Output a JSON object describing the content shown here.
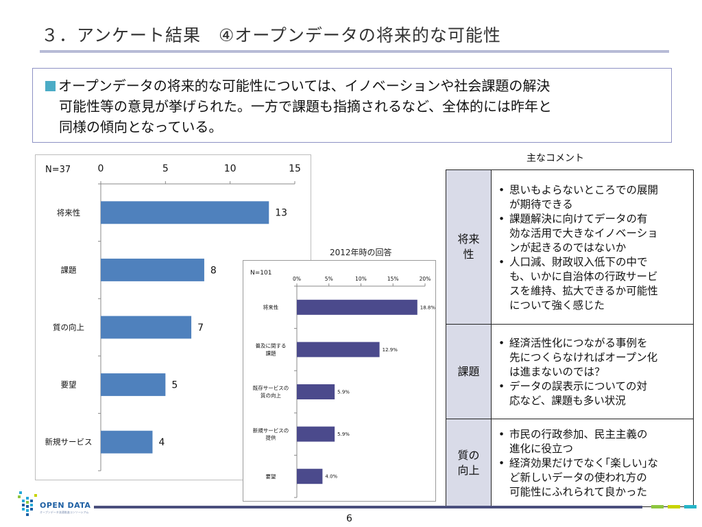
{
  "title": "３．アンケート結果　④オープンデータの将来的な可能性",
  "summary": {
    "lines": [
      "オープンデータの将来的な可能性については、イノベーションや社会課題の解決",
      "可能性等の意見が挙げられた。一方で課題も指摘されるなど、全体的には昨年と",
      "同様の傾向となっている。"
    ]
  },
  "colors": {
    "title_rule": "#b7bbd6",
    "summary_border": "#8d91c4",
    "bullet_square": "#4bacc6",
    "bar_2013": "#4f81bd",
    "bar_2012": "#4b4a8c",
    "category_cell": "#d9dbe8",
    "footer_rule": "#4a4f7d"
  },
  "chart_data": [
    {
      "type": "bar",
      "orientation": "horizontal",
      "note": "N=37",
      "categories": [
        "将来性",
        "課題",
        "質の向上",
        "要望",
        "新規サービス"
      ],
      "values": [
        13,
        8,
        7,
        5,
        4
      ],
      "data_labels": [
        "13",
        "8",
        "7",
        "5",
        "4"
      ],
      "xlim": [
        0,
        15
      ],
      "x_ticks": [
        "0",
        "5",
        "10",
        "15"
      ],
      "x_tick_values": [
        0,
        5,
        10,
        15
      ],
      "axis_position": "top",
      "grid": false
    },
    {
      "type": "bar",
      "orientation": "horizontal",
      "title": "2012年時の回答",
      "note": "N=101",
      "categories": [
        [
          "将来性"
        ],
        [
          "普及に関する",
          "課題"
        ],
        [
          "既存サービスの",
          "質の向上"
        ],
        [
          "新規サービスの",
          "提供"
        ],
        [
          "要望"
        ]
      ],
      "values": [
        18.8,
        12.9,
        5.9,
        5.9,
        4.0
      ],
      "data_labels": [
        "18.8%",
        "12.9%",
        "5.9%",
        "5.9%",
        "4.0%"
      ],
      "xlim": [
        0,
        20
      ],
      "x_ticks": [
        "0%",
        "5%",
        "10%",
        "15%",
        "20%"
      ],
      "x_tick_values": [
        0,
        5,
        10,
        15,
        20
      ],
      "axis_position": "top",
      "grid": false
    }
  ],
  "comments": {
    "caption": "主なコメント",
    "rows": [
      {
        "category": [
          "将来",
          "性"
        ],
        "items": [
          [
            "思いもよらないところでの展開",
            "が期待できる"
          ],
          [
            "課題解決に向けてデータの有",
            "効な活用で大きなイノベーショ",
            "ンが起きるのではないか"
          ],
          [
            "人口減、財政収入低下の中で",
            "も、いかに自治体の行政サービ",
            "スを維持、拡大できるか可能性",
            "について強く感じた"
          ]
        ]
      },
      {
        "category": [
          "課題"
        ],
        "items": [
          [
            "経済活性化につながる事例を",
            "先につくらなければオープン化",
            "は進まないのでは？"
          ],
          [
            "データの誤表示についての対",
            "応など、課題も多い状況"
          ]
        ]
      },
      {
        "category": [
          "質の",
          "向上"
        ],
        "items": [
          [
            "市民の行政参加、民主主義の",
            "進化に役立つ"
          ],
          [
            "経済効果だけでなく｢楽しい｣な",
            "ど新しいデータの使われ方の",
            "可能性にふれられて良かった"
          ]
        ]
      }
    ]
  },
  "logo": {
    "text": "OPEN DATA",
    "subtext": "オープンデータ流通推進コンソーシアム"
  },
  "page_number": "6"
}
